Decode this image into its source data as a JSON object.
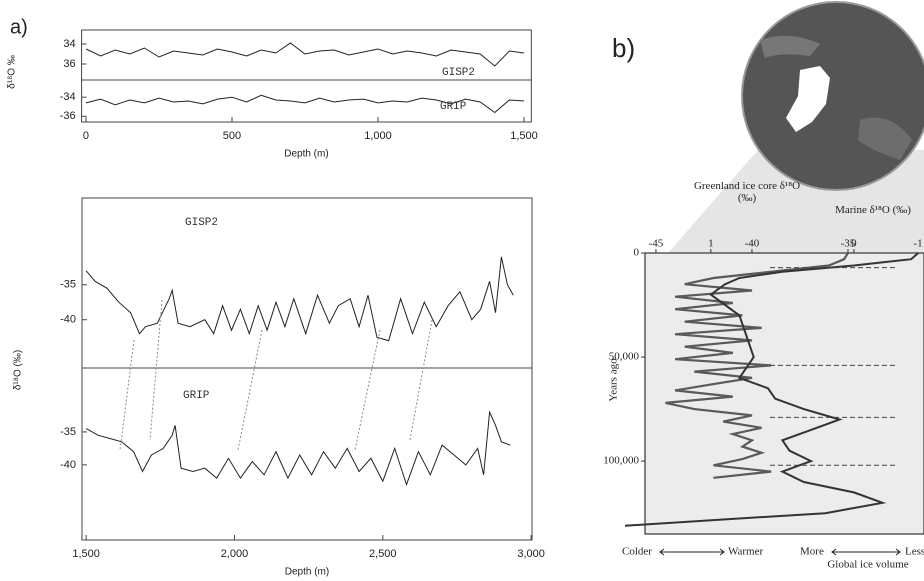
{
  "panel_labels": [
    "a)",
    "b)"
  ],
  "chart_data": [
    {
      "type": "line",
      "label": "GISP2",
      "ylabel": "δ¹⁸O ‰",
      "x": [
        0,
        50,
        100,
        150,
        200,
        250,
        300,
        350,
        400,
        450,
        500,
        550,
        600,
        650,
        700,
        750,
        800,
        850,
        900,
        950,
        1000,
        1050,
        1100,
        1150,
        1200,
        1250,
        1300,
        1350,
        1400,
        1450,
        1500
      ],
      "values": [
        -34.5,
        -35.2,
        -34.6,
        -35.0,
        -34.4,
        -35.3,
        -34.7,
        -34.9,
        -35.1,
        -34.5,
        -34.8,
        -35.2,
        -34.6,
        -34.9,
        -33.9,
        -35.0,
        -34.7,
        -34.6,
        -35.1,
        -34.8,
        -34.5,
        -35.0,
        -34.7,
        -34.9,
        -35.2,
        -34.6,
        -34.8,
        -35.0,
        -36.2,
        -34.7,
        -34.9
      ],
      "xlim": [
        -15,
        1525
      ],
      "ylim": [
        -37.6,
        -32.6
      ],
      "yticks": [
        {
          "value": -34,
          "label": "34"
        },
        {
          "value": -36,
          "label": "36"
        }
      ]
    },
    {
      "type": "line",
      "label": "GRIP",
      "xlabel": "Depth (m)",
      "x": [
        0,
        50,
        100,
        150,
        200,
        250,
        300,
        350,
        400,
        450,
        500,
        550,
        600,
        650,
        700,
        750,
        800,
        850,
        900,
        950,
        1000,
        1050,
        1100,
        1150,
        1200,
        1250,
        1300,
        1350,
        1400,
        1450,
        1500
      ],
      "values": [
        -34.6,
        -34.2,
        -34.8,
        -34.3,
        -34.6,
        -34.1,
        -34.5,
        -34.4,
        -34.7,
        -34.2,
        -34.0,
        -34.5,
        -33.8,
        -34.3,
        -34.4,
        -34.6,
        -34.1,
        -34.5,
        -34.3,
        -34.2,
        -34.6,
        -34.4,
        -34.5,
        -34.1,
        -34.3,
        -34.7,
        -34.2,
        -34.5,
        -35.6,
        -34.3,
        -34.4
      ],
      "xlim": [
        -15,
        1525
      ],
      "ylim": [
        -36.6,
        -32.2
      ],
      "yticks": [
        -34,
        -36
      ],
      "xticks": [
        0,
        500,
        {
          "value": 1000,
          "label": "1,000"
        },
        {
          "value": 1500,
          "label": "1,500"
        }
      ]
    },
    {
      "type": "line",
      "label": "GISP2",
      "ylabel": "δ¹⁸O (‰)",
      "x": [
        1500,
        1530,
        1570,
        1610,
        1650,
        1680,
        1700,
        1740,
        1780,
        1790,
        1810,
        1850,
        1900,
        1930,
        1960,
        1990,
        2020,
        2050,
        2080,
        2110,
        2140,
        2170,
        2200,
        2240,
        2280,
        2320,
        2350,
        2390,
        2420,
        2450,
        2480,
        2520,
        2560,
        2600,
        2640,
        2680,
        2720,
        2760,
        2800,
        2830,
        2860,
        2880,
        2900,
        2920,
        2940
      ],
      "values": [
        -33.0,
        -34.5,
        -35.5,
        -37.5,
        -39.0,
        -42.0,
        -41.0,
        -40.5,
        -37.0,
        -35.8,
        -40.5,
        -41.0,
        -40.0,
        -42.0,
        -38.0,
        -41.5,
        -38.5,
        -42.0,
        -38.0,
        -41.5,
        -37.5,
        -41.0,
        -37.0,
        -42.0,
        -36.5,
        -40.5,
        -38.0,
        -37.0,
        -41.0,
        -36.5,
        -42.5,
        -43.0,
        -37.0,
        -42.0,
        -37.5,
        -41.0,
        -38.0,
        -36.0,
        -40.0,
        -38.5,
        -34.5,
        -39.0,
        -31.0,
        -35.0,
        -36.5
      ],
      "xlim": [
        1486,
        3003
      ],
      "ylim": [
        -46.9,
        -22.6
      ],
      "yticks": [
        -35,
        -40
      ]
    },
    {
      "type": "line",
      "label": "GRIP",
      "xlabel": "Depth (m)",
      "x": [
        1500,
        1540,
        1580,
        1620,
        1660,
        1690,
        1720,
        1760,
        1790,
        1800,
        1820,
        1860,
        1900,
        1940,
        1980,
        2020,
        2060,
        2100,
        2140,
        2180,
        2220,
        2260,
        2300,
        2340,
        2380,
        2420,
        2460,
        2500,
        2540,
        2580,
        2620,
        2660,
        2700,
        2740,
        2780,
        2820,
        2840,
        2860,
        2880,
        2900,
        2930
      ],
      "values": [
        -34.5,
        -35.5,
        -36.0,
        -36.5,
        -38.0,
        -41.0,
        -38.5,
        -37.5,
        -35.5,
        -34.0,
        -40.5,
        -41.0,
        -40.5,
        -42.0,
        -39.0,
        -42.0,
        -39.5,
        -41.5,
        -38.0,
        -42.0,
        -38.5,
        -41.5,
        -38.0,
        -40.5,
        -37.5,
        -41.0,
        -39.0,
        -42.5,
        -37.5,
        -43.0,
        -38.0,
        -41.5,
        -37.0,
        -38.5,
        -40.0,
        -37.5,
        -41.5,
        -32.0,
        -34.0,
        -36.5,
        -37.0
      ],
      "xlim": [
        1486,
        3003
      ],
      "ylim": [
        -51.4,
        -25.3
      ],
      "yticks": [
        -35,
        -40
      ],
      "xticks": [
        {
          "value": 1500,
          "label": "1,500"
        },
        {
          "value": 2000,
          "label": "2,000"
        },
        {
          "value": 2500,
          "label": "2,500"
        },
        {
          "value": 3000,
          "label": "3,000"
        }
      ]
    },
    {
      "type": "profile",
      "ylabel": "Years ago",
      "ylim": [
        0,
        135000
      ],
      "yticks": [
        0,
        {
          "value": 50000,
          "label": "50,000"
        },
        {
          "value": 100000,
          "label": "100,000"
        }
      ],
      "tie_lines": [
        7000,
        54000,
        79000,
        102000
      ],
      "series": [
        {
          "name": "Greenland ice core δ¹⁸O (‰)",
          "color": "#5a5a5a",
          "years": [
            0,
            3000,
            6000,
            9000,
            12000,
            15000,
            18000,
            21000,
            24000,
            27000,
            30000,
            33000,
            36000,
            39000,
            42000,
            45000,
            48000,
            51000,
            54000,
            57000,
            60000,
            63000,
            66000,
            69000,
            72000,
            75000,
            78000,
            81000,
            84000,
            87000,
            90000,
            93000,
            96000,
            99000,
            102000,
            105000,
            108000
          ],
          "values": [
            -35,
            -35.2,
            -36,
            -39,
            -42,
            -43.5,
            -40,
            -44,
            -41,
            -44,
            -40.5,
            -43.5,
            -39.5,
            -44,
            -40,
            -43.5,
            -41,
            -44,
            -39,
            -43,
            -40,
            -42,
            -44,
            -41,
            -44.5,
            -43,
            -40,
            -41.5,
            -39.5,
            -41,
            -40,
            -40.5,
            -39.5,
            -40.5,
            -42,
            -39,
            -42
          ],
          "xlim": [
            -45.57,
            -31.04
          ],
          "xticks": [
            -45,
            -40,
            -35
          ]
        },
        {
          "name": "Marine δ¹⁸O (‰)",
          "color": "#333333",
          "years": [
            0,
            3000,
            6000,
            9000,
            12000,
            15000,
            20000,
            30000,
            40000,
            50000,
            60000,
            65000,
            70000,
            75000,
            80000,
            85000,
            90000,
            95000,
            100000,
            105000,
            110000,
            115000,
            120000,
            125000,
            128000,
            131000
          ],
          "values": [
            -0.45,
            -0.4,
            0,
            0.5,
            0.8,
            0.9,
            1.0,
            0.8,
            0.75,
            0.7,
            0.8,
            0.6,
            0.55,
            0.35,
            0.1,
            0.3,
            0.5,
            0.45,
            0.3,
            0.5,
            0.35,
            0.0,
            -0.2,
            0.2,
            0.9,
            1.6
          ],
          "xlim": [
            1.46,
            -0.49
          ],
          "xticks": [
            1,
            0,
            -1
          ]
        }
      ],
      "annotations": [
        "Colder",
        "Warmer",
        "More",
        "Less",
        "Global ice volume"
      ]
    }
  ]
}
